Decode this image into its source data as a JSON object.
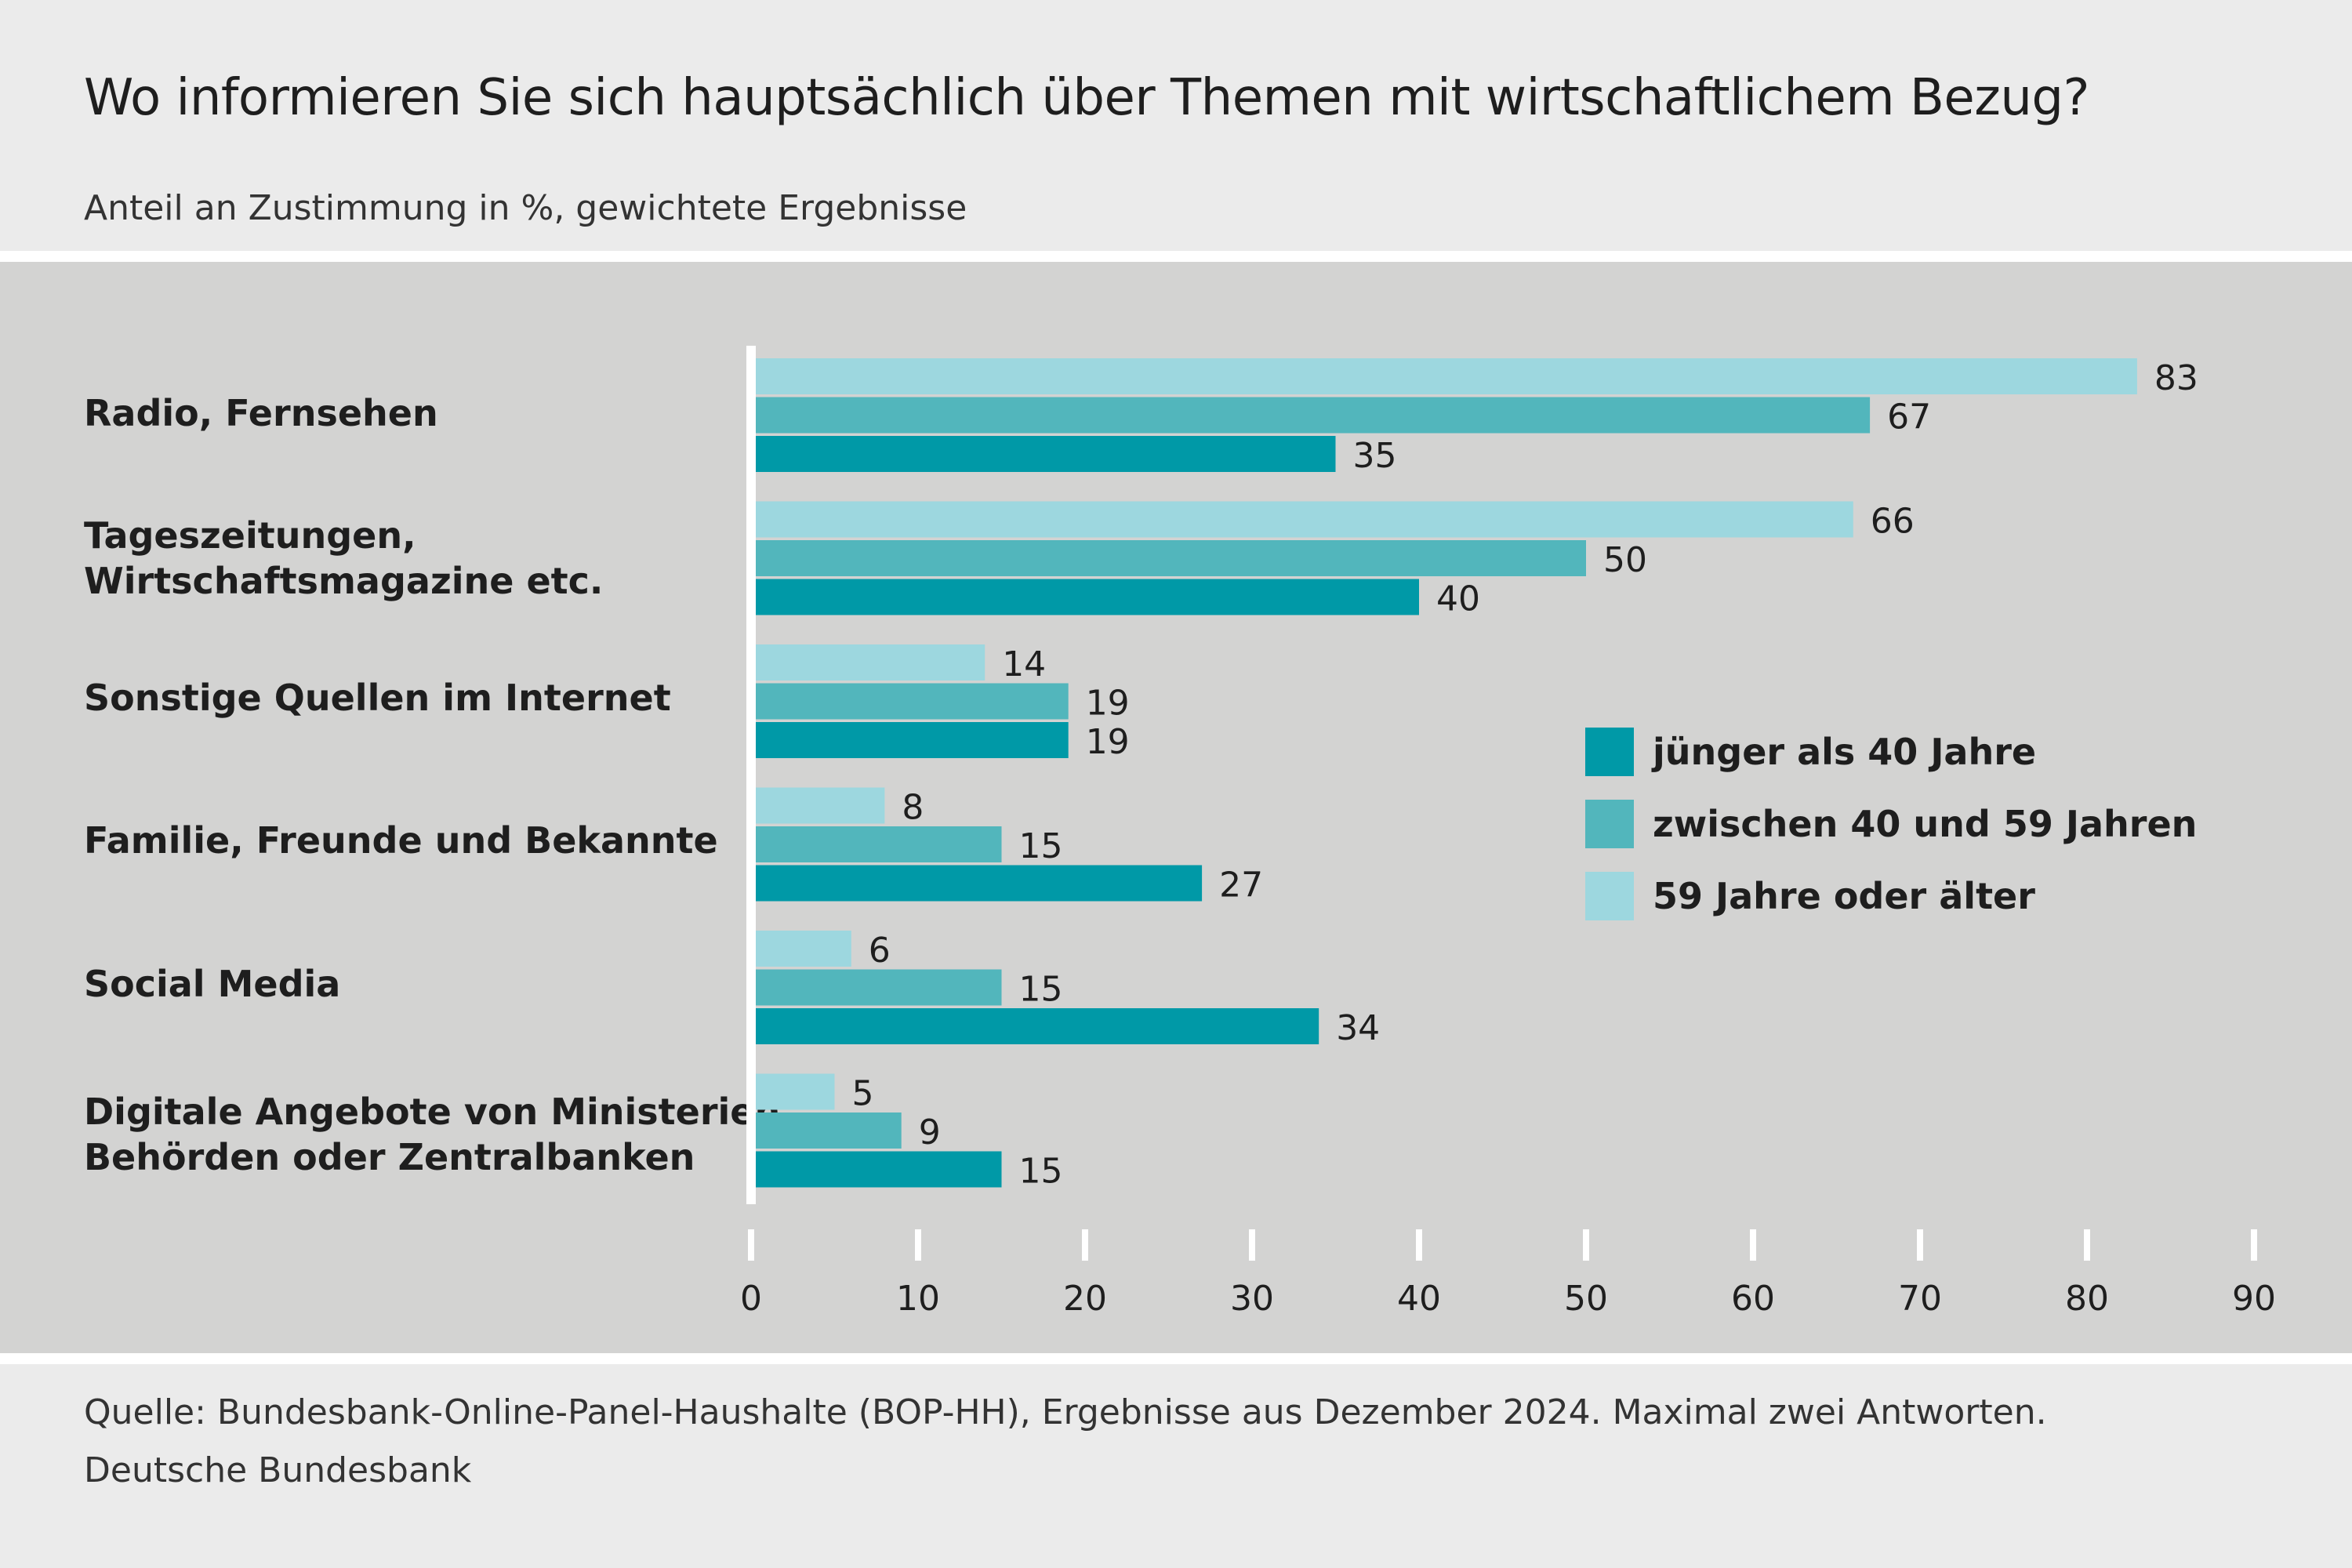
{
  "header": {
    "title": "Wo informieren Sie sich hauptsächlich über Themen mit wirtschaftlichem Bezug?",
    "subtitle": "Anteil an Zustimmung in %, gewichtete Ergebnisse"
  },
  "footer": {
    "source": "Quelle: Bundesbank-Online-Panel-Haushalte (BOP-HH), Ergebnisse aus Dezember 2024. Maximal zwei Antworten.",
    "credit": "Deutsche Bundesbank"
  },
  "chart_data": {
    "type": "bar",
    "orientation": "horizontal",
    "title": "Wo informieren Sie sich hauptsächlich über Themen mit wirtschaftlichem Bezug?",
    "subtitle": "Anteil an Zustimmung in %, gewichtete Ergebnisse",
    "xlabel": "",
    "ylabel": "",
    "xlim": [
      0,
      90
    ],
    "xticks": [
      0,
      10,
      20,
      30,
      40,
      50,
      60,
      70,
      80,
      90
    ],
    "grid": false,
    "legend_position": "right, inside plot",
    "categories": [
      "Radio, Fernsehen",
      "Tageszeitungen,\nWirtschaftsmagazine etc.",
      "Sonstige Quellen im Internet",
      "Familie, Freunde und Bekannte",
      "Social Media",
      "Digitale Angebote von Ministerien,\nBehörden oder Zentralbanken"
    ],
    "series": [
      {
        "name": "59 Jahre oder älter",
        "color": "#9dd7df",
        "values": [
          83,
          66,
          14,
          8,
          6,
          5
        ]
      },
      {
        "name": "zwischen 40 und 59 Jahren",
        "color": "#52b6bc",
        "values": [
          67,
          50,
          19,
          15,
          15,
          9
        ]
      },
      {
        "name": "jünger als 40 Jahre",
        "color": "#0099a7",
        "values": [
          35,
          40,
          19,
          27,
          34,
          15
        ]
      }
    ],
    "legend_order": [
      "jünger als 40 Jahre",
      "zwischen 40 und 59 Jahren",
      "59 Jahre oder älter"
    ],
    "data_labels": true
  }
}
